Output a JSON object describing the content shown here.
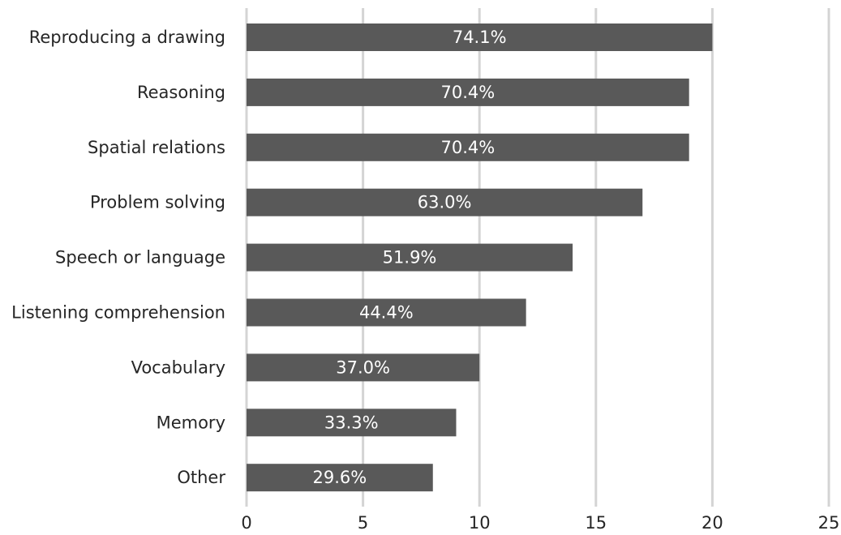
{
  "chart_data": {
    "type": "bar",
    "orientation": "horizontal",
    "title": "",
    "xlabel": "",
    "ylabel": "",
    "categories": [
      "Reproducing a drawing",
      "Reasoning",
      "Spatial relations",
      "Problem solving",
      "Speech or language",
      "Listening comprehension",
      "Vocabulary",
      "Memory",
      "Other"
    ],
    "values": [
      20,
      19,
      19,
      17,
      14,
      12,
      10,
      9,
      8
    ],
    "data_labels": [
      "74.1%",
      "70.4%",
      "70.4%",
      "63.0%",
      "51.9%",
      "44.4%",
      "37.0%",
      "33.3%",
      "29.6%"
    ],
    "xlim": [
      0,
      25
    ],
    "x_ticks": [
      0,
      5,
      10,
      15,
      20,
      25
    ],
    "grid": "vertical",
    "legend": "none",
    "bar_color": "#595959",
    "grid_color": "#d4d4d4",
    "data_label_color": "#ffffff",
    "text_color": "#262626"
  }
}
